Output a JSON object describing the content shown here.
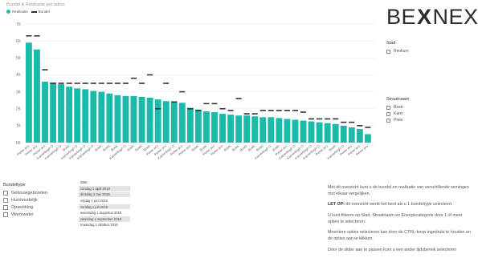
{
  "chart_title": "Bundel & Realisatie per adres",
  "legend": {
    "realisatie": "Realisatie",
    "bundel": "Bundel"
  },
  "colors": {
    "bar": "#1bbbaa",
    "marker": "#333333"
  },
  "logo": {
    "left": "BE",
    "mark": "X",
    "right": "NEXT"
  },
  "chart_data": {
    "type": "bar",
    "y_ticks": [
      "0K",
      "1K",
      "2K",
      "3K",
      "4K",
      "5K",
      "6K",
      "7K"
    ],
    "ylim": [
      0,
      7000
    ],
    "categories": [
      "Pieter pro.",
      "Pieter pro.",
      "Pieter pro.",
      "Kamerlingh O.",
      "Kamerlingh O.",
      "Boeb.",
      "Kamerlingh O.",
      "Kamerlingh O.",
      "Kamerlingh O.",
      "Boeb.",
      "Boeb.",
      "Boeb.",
      "Kamerlingh O.",
      "Boeb.",
      "Boeb.",
      "Boeb.",
      "Pieter pro.",
      "Pieter pro.",
      "Kamerlingh O.",
      "Pieter pro.",
      "Pieter pro.",
      "Boeb.",
      "Boeb.",
      "Pieter pro.",
      "Pieter pro.",
      "Boeb.",
      "Boeb.",
      "Boeb.",
      "Boeb.",
      "Boeb.",
      "Kamerlingh O.",
      "Boeb.",
      "Pieter pro.",
      "Kamerlingh O.",
      "Kamerlingh O.",
      "Kamerlingh O.",
      "Kamerlingh O.",
      "Pieter pro.",
      "Boeb.",
      "Kamerlingh O.",
      "Pieter pro.",
      "Pieter pro.",
      "Pieter pro."
    ],
    "series": [
      {
        "name": "Realisatie",
        "values": [
          5900,
          5500,
          3600,
          3550,
          3450,
          3300,
          3200,
          3150,
          3050,
          3000,
          2900,
          2800,
          2750,
          2750,
          2700,
          2650,
          2550,
          2450,
          2400,
          2350,
          2050,
          1950,
          1850,
          1800,
          1700,
          1650,
          1600,
          1600,
          1550,
          1500,
          1500,
          1450,
          1400,
          1350,
          1300,
          1250,
          1200,
          1150,
          1100,
          1000,
          900,
          800,
          500
        ]
      },
      {
        "name": "Bundel",
        "values": [
          6300,
          6300,
          4300,
          3500,
          3500,
          3500,
          3500,
          3500,
          3500,
          3500,
          3500,
          3500,
          3500,
          3800,
          3500,
          4000,
          2000,
          3500,
          2400,
          3000,
          2000,
          1900,
          2300,
          2300,
          2000,
          1900,
          2600,
          1700,
          1700,
          1900,
          1900,
          1900,
          1900,
          1900,
          1800,
          1400,
          1400,
          1400,
          1400,
          1200,
          1200,
          1000,
          900
        ]
      }
    ]
  },
  "stad": {
    "title": "Stad",
    "items": [
      "Renkum"
    ]
  },
  "straatnaam": {
    "title": "Straatnaam",
    "items": [
      "Boeb",
      "Kann",
      "Piete"
    ]
  },
  "bundeltype": {
    "title": "Bundeltype",
    "items": [
      "Gebouwgebonden",
      "Huishoudelijk",
      "Opwekking",
      "Warmwater"
    ]
  },
  "date_slicer": {
    "title": "date",
    "rows": [
      {
        "label": "zondag 1 april 2018",
        "selected": true
      },
      {
        "label": "dinsdag 1 mei 2018",
        "selected": true
      },
      {
        "label": "vrijdag 1 juni 2018",
        "selected": false
      },
      {
        "label": "zondag 1 juli 2018",
        "selected": true
      },
      {
        "label": "woensdag 1 augustus 2018",
        "selected": false
      },
      {
        "label": "zaterdag 1 september 2018",
        "selected": true
      },
      {
        "label": "maandag 1 oktober 2018",
        "selected": false
      }
    ]
  },
  "info": {
    "p1": "Met dit overzicht kunt u de bundel en realisatie van verschillende woningen met elkaar vergelijken.",
    "p2_strong": "LET OP:",
    "p2_rest": " dit overzicht werkt het best als u 1 bundeltype selecteert.",
    "p3": "U kunt filteren op Stad, Straatnaam en Energiecategorie door 1 of meer opties te selecteren.",
    "p4": "Meerdere opties selecteren kan door de CTRL-knop ingedrukt te houden en de opties aan te klikken.",
    "p5": "Door de slider aan te passen kunt u een ander tijdsbereik selecteren"
  }
}
